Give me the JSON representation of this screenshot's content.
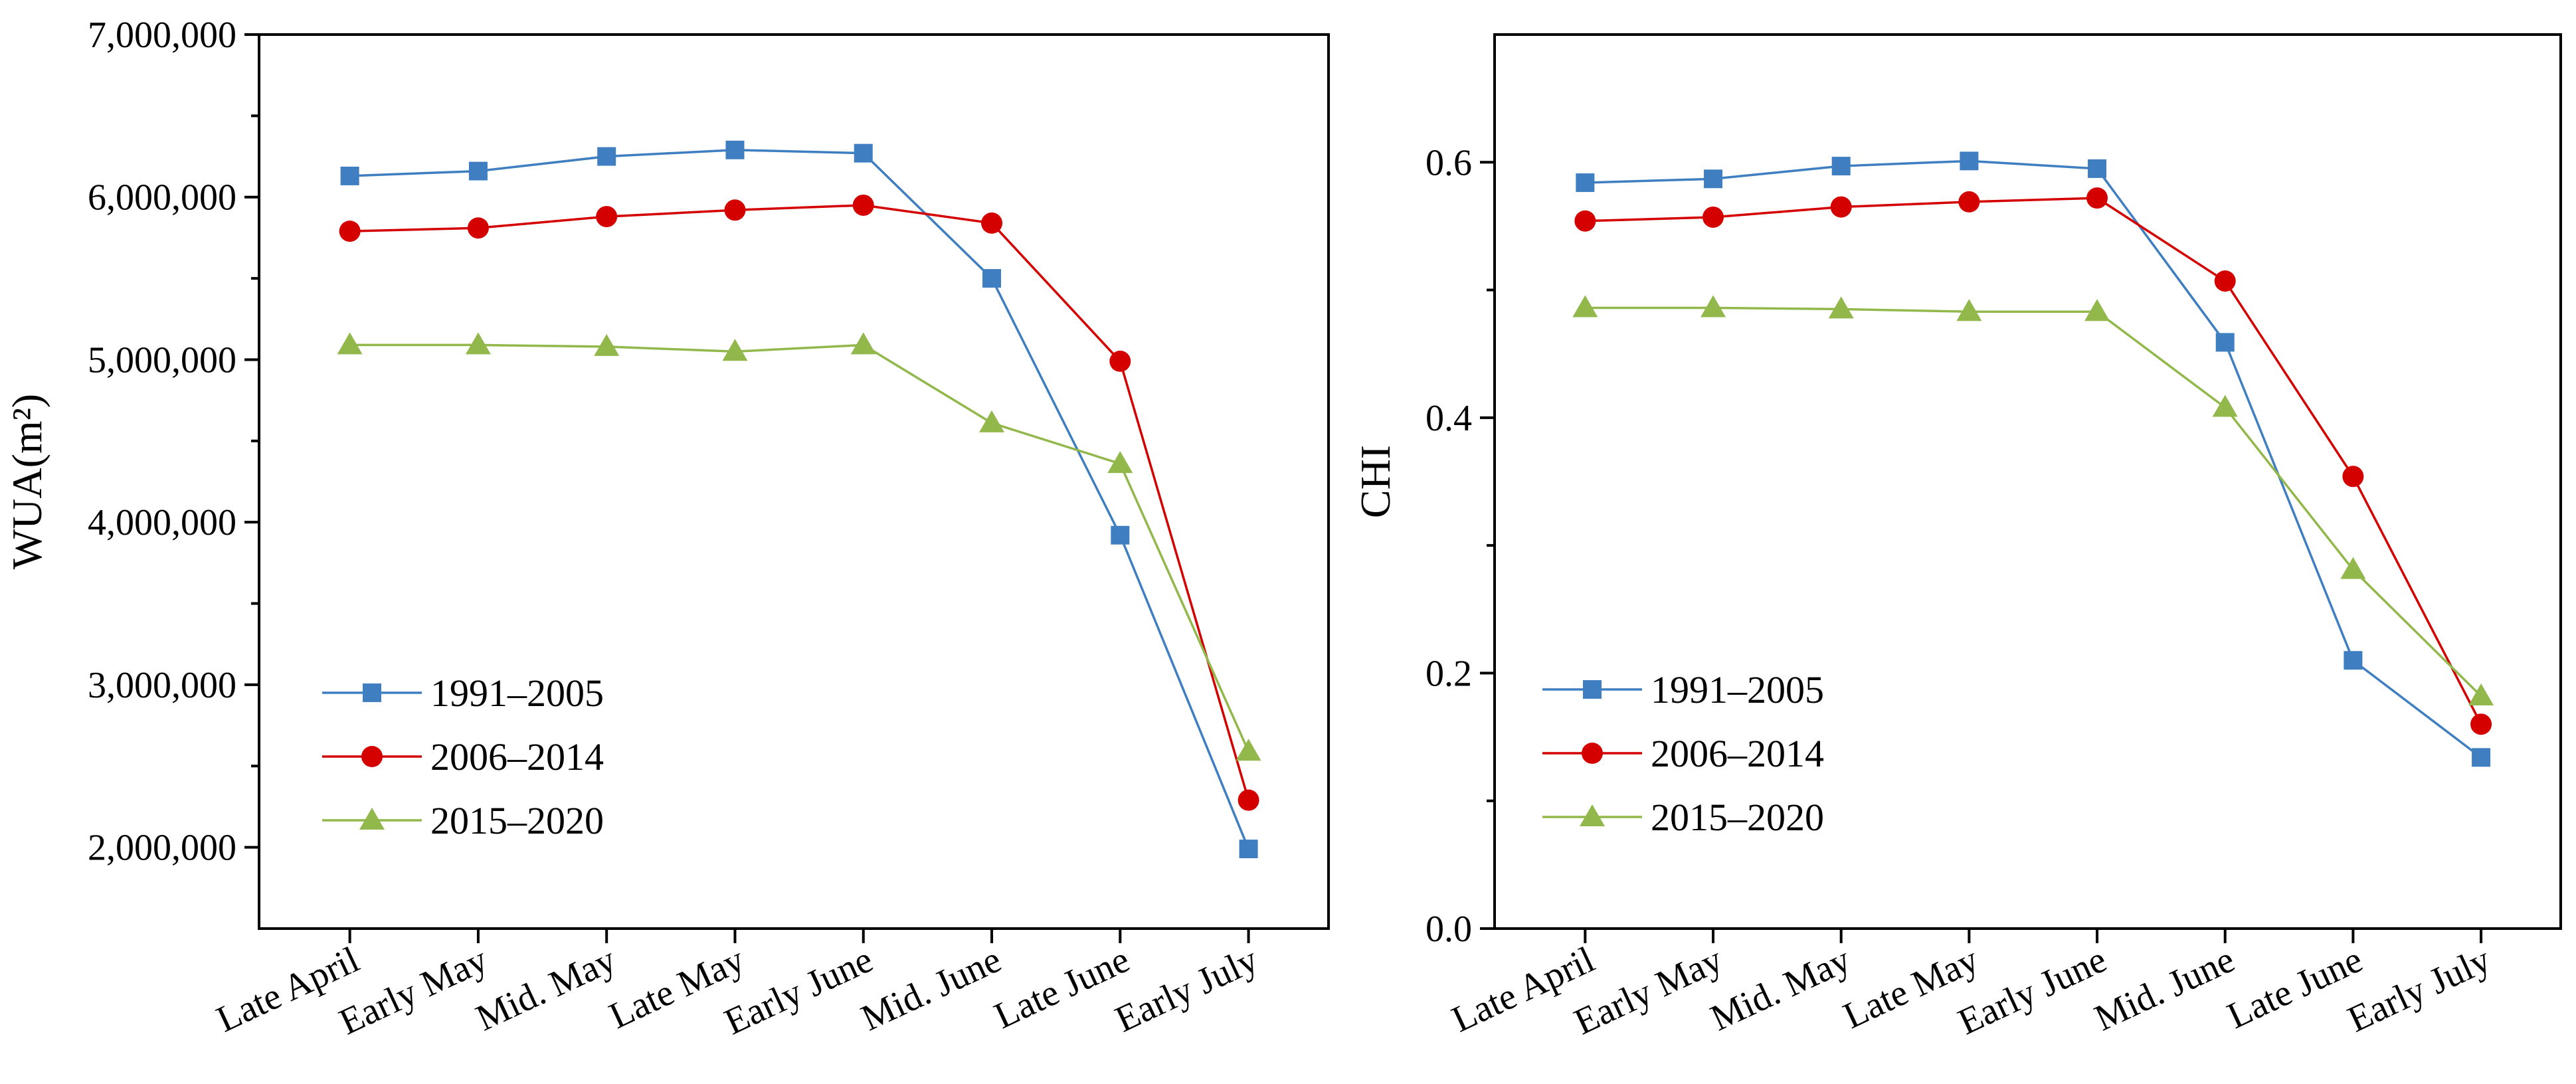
{
  "chart_data": [
    {
      "type": "line",
      "title": "",
      "xlabel": "",
      "ylabel": "WUA(m²)",
      "ylim": [
        1500000,
        7000000
      ],
      "yticks": [
        2000000,
        3000000,
        4000000,
        5000000,
        6000000,
        7000000
      ],
      "ytick_labels": [
        "2,000,000",
        "3,000,000",
        "4,000,000",
        "5,000,000",
        "6,000,000",
        "7,000,000"
      ],
      "minor_ticks": true,
      "grid": false,
      "legend_position": "bottom-left",
      "categories": [
        "Late April",
        "Early May",
        "Mid. May",
        "Late May",
        "Early June",
        "Mid. June",
        "Late June",
        "Early July"
      ],
      "series": [
        {
          "name": "1991–2005",
          "color": "#3f7fc1",
          "marker": "square",
          "values": [
            6130000,
            6160000,
            6250000,
            6290000,
            6270000,
            5500000,
            3920000,
            1990000
          ]
        },
        {
          "name": "2006–2014",
          "color": "#d40000",
          "marker": "circle",
          "values": [
            5790000,
            5810000,
            5880000,
            5920000,
            5950000,
            5840000,
            4990000,
            2290000
          ]
        },
        {
          "name": "2015–2020",
          "color": "#92b84c",
          "marker": "triangle",
          "values": [
            5090000,
            5090000,
            5080000,
            5050000,
            5090000,
            4610000,
            4360000,
            2590000
          ]
        }
      ]
    },
    {
      "type": "line",
      "title": "",
      "xlabel": "",
      "ylabel": "CHI",
      "ylim": [
        0.0,
        0.7
      ],
      "yticks": [
        0.0,
        0.2,
        0.4,
        0.6
      ],
      "ytick_labels": [
        "0.0",
        "0.2",
        "0.4",
        "0.6"
      ],
      "minor_ticks": true,
      "grid": false,
      "legend_position": "bottom-left",
      "categories": [
        "Late April",
        "Early May",
        "Mid. May",
        "Late May",
        "Early June",
        "Mid. June",
        "Late June",
        "Early July"
      ],
      "series": [
        {
          "name": "1991–2005",
          "color": "#3f7fc1",
          "marker": "square",
          "values": [
            0.584,
            0.587,
            0.597,
            0.601,
            0.595,
            0.459,
            0.21,
            0.134
          ]
        },
        {
          "name": "2006–2014",
          "color": "#d40000",
          "marker": "circle",
          "values": [
            0.554,
            0.557,
            0.565,
            0.569,
            0.572,
            0.507,
            0.354,
            0.16
          ]
        },
        {
          "name": "2015–2020",
          "color": "#92b84c",
          "marker": "triangle",
          "values": [
            0.486,
            0.486,
            0.485,
            0.483,
            0.483,
            0.408,
            0.281,
            0.182
          ]
        }
      ]
    }
  ]
}
